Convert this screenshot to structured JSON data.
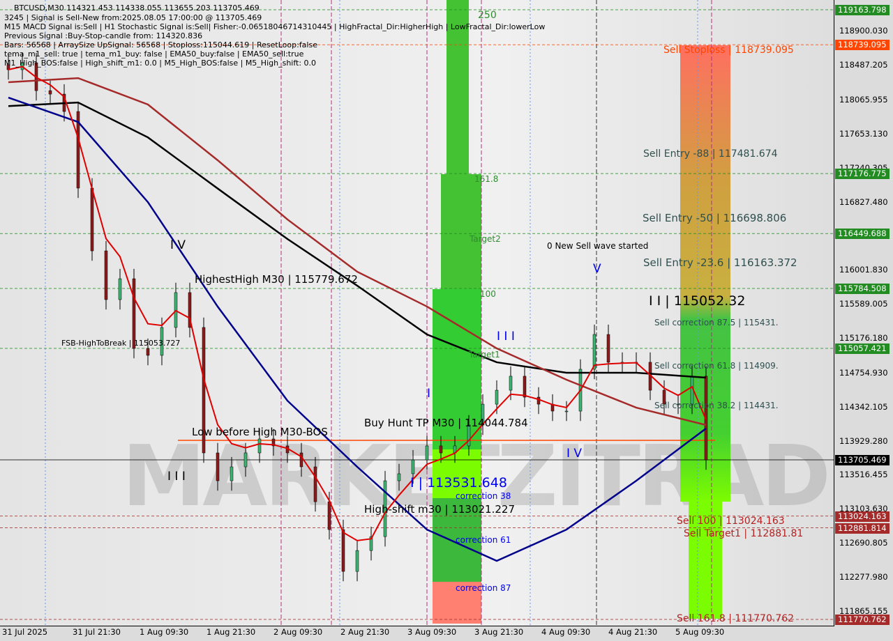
{
  "chart_data": {
    "type": "candlestick",
    "symbol_line": "BTCUSD,M30  114321.453 114338.055 113655.203 113705.469",
    "info_lines": [
      "3245 | Signal is Sell-New from:2025.08.05 17:00:00 @ 113705.469",
      "M15 MACD Signal is:Sell | H1 Stochastic Signal is:Sell| Fisher:-0.06518046714310445 | HighFractal_Dir:HigherHigh | LowFractal_Dir:lowerLow",
      "Previous Signal :Buy-Stop-candle from: 114320.836",
      "Bars: 56568 | ArraySize UpSignal: 56568 | Stoploss:115044.619 | ResetLoop:false",
      "tema_m1_sell: true | tema_m1_buy: false | EMA50_buy:false | EMA50_sell:true",
      "M1_High_BOS:false | High_shift_m1: 0.0 | M5_High_BOS:false | M5_High_shift: 0.0"
    ],
    "ylim": [
      111770.762,
      119163.798
    ],
    "y_ticks": [
      "118900.030",
      "118487.205",
      "118065.955",
      "117653.130",
      "117240.305",
      "116827.480",
      "116001.830",
      "115589.005",
      "115176.180",
      "114754.930",
      "114342.105",
      "113929.280",
      "113516.455",
      "113103.630",
      "112690.805",
      "112277.980",
      "111865.155"
    ],
    "x_ticks": [
      "31 Jul 2025",
      "31 Jul 21:30",
      "1 Aug 09:30",
      "1 Aug 21:30",
      "2 Aug 09:30",
      "2 Aug 21:30",
      "3 Aug 09:30",
      "3 Aug 21:30",
      "4 Aug 09:30",
      "4 Aug 21:30",
      "5 Aug 09:30"
    ],
    "times": [
      "31 Jul 06:30",
      "31 Jul 09:00",
      "31 Jul 11:30",
      "31 Jul 14:00",
      "31 Jul 16:30",
      "31 Jul 19:00",
      "31 Jul 21:30",
      "1 Aug 00:00",
      "1 Aug 02:30",
      "1 Aug 05:00",
      "1 Aug 07:30",
      "1 Aug 10:00",
      "1 Aug 12:30",
      "1 Aug 15:00",
      "1 Aug 17:30",
      "1 Aug 20:00",
      "1 Aug 22:30",
      "2 Aug 01:00",
      "2 Aug 03:30",
      "2 Aug 06:00",
      "2 Aug 08:30",
      "2 Aug 11:00",
      "2 Aug 13:30",
      "2 Aug 16:00",
      "2 Aug 18:30",
      "2 Aug 21:00",
      "2 Aug 23:30",
      "3 Aug 02:00",
      "3 Aug 04:30",
      "3 Aug 07:00",
      "3 Aug 09:30",
      "3 Aug 12:00",
      "3 Aug 14:30",
      "3 Aug 17:00",
      "3 Aug 19:30",
      "3 Aug 22:00",
      "4 Aug 00:30",
      "4 Aug 03:00",
      "4 Aug 05:30",
      "4 Aug 08:00",
      "4 Aug 10:30",
      "4 Aug 13:00",
      "4 Aug 15:30",
      "4 Aug 18:00",
      "4 Aug 20:30",
      "4 Aug 23:00",
      "5 Aug 01:30",
      "5 Aug 04:00",
      "5 Aug 06:30",
      "5 Aug 09:00",
      "5 Aug 11:30"
    ],
    "close": [
      118437,
      118521,
      118183,
      118141,
      117930,
      117001,
      116240,
      115649,
      115902,
      115057,
      114973,
      115311,
      115734,
      115311,
      113790,
      113452,
      113621,
      113790,
      113959,
      113875,
      113790,
      113621,
      113198,
      112860,
      112353,
      112606,
      112775,
      113452,
      113537,
      113705,
      113875,
      113790,
      113875,
      114128,
      114381,
      114550,
      114720,
      114466,
      114381,
      114297,
      114297,
      114804,
      115226,
      114889,
      114889,
      114889,
      114550,
      114381,
      114381,
      114720,
      113705
    ],
    "ma_times": [
      "31 Jul 06:30",
      "31 Jul 19:00",
      "1 Aug 07:30",
      "1 Aug 20:00",
      "2 Aug 08:30",
      "2 Aug 21:00",
      "3 Aug 09:30",
      "3 Aug 22:00",
      "4 Aug 10:30",
      "4 Aug 23:00",
      "5 Aug 11:30"
    ],
    "ma_series": [
      {
        "color": "#000000",
        "values": [
          117996,
          118039,
          117616,
          116996,
          116384,
          115818,
          115226,
          114889,
          114762,
          114762,
          114703
        ]
      },
      {
        "color": "#a52a2a",
        "values": [
          118285,
          118335,
          118015,
          117339,
          116621,
          115987,
          115565,
          115057,
          114677,
          114339,
          114128
        ]
      },
      {
        "color": "#00008b",
        "values": [
          118099,
          117803,
          116831,
          115564,
          114423,
          113621,
          112860,
          112480,
          112860,
          113452,
          114086
        ]
      }
    ],
    "price_levels": [
      {
        "price": "119163.798",
        "color": "#228b22"
      },
      {
        "price": "118739.095",
        "color": "#ff4500"
      },
      {
        "price": "117176.775",
        "color": "#228b22"
      },
      {
        "price": "116449.688",
        "color": "#228b22"
      },
      {
        "price": "115784.508",
        "color": "#228b22"
      },
      {
        "price": "115057.421",
        "color": "#228b22"
      },
      {
        "price": "113705.469",
        "color": "#000000"
      },
      {
        "price": "113024.163",
        "color": "#a52a2a"
      },
      {
        "price": "112881.814",
        "color": "#a52a2a"
      },
      {
        "price": "111770.762",
        "color": "#a52a2a"
      }
    ],
    "annotations": {
      "fib_250": "250",
      "fib_161": "161.8",
      "target2": "Target2",
      "fib_100": "100",
      "target1": "Target1",
      "corr38": "correction 38",
      "corr61": "correction 61",
      "corr87": "correction 87",
      "sell_stoploss": "Sell Stoploss | 118739.095",
      "sell_entry_88": "Sell Entry -88 | 117481.674",
      "sell_entry_50": "Sell Entry -50 | 116698.806",
      "sell_entry_23": "Sell Entry -23.6 | 116163.372",
      "new_sell_wave": "0 New Sell wave started",
      "wave_v": "V",
      "wave_ii": "I I | 115052.32",
      "sell_corr_875": "Sell correction 87.5 | 115431.",
      "sell_corr_618": "Sell correction 61.8 | 114909.",
      "sell_corr_382": "Sell correction 38.2 | 114431.",
      "wave_iii_blue": "I I I",
      "wave_i_blue": "I",
      "wave_iv_blue": "I V",
      "wave_iv_black": "I V",
      "highest_high": "HighestHigh   M30 | 115779.672",
      "fsb": "FSB-HighToBreak | 115053.727",
      "low_before_high": "Low before High   M30-BOS",
      "buy_hunt_tp": "Buy Hunt TP M30 | 114044.784",
      "wave_iii_black": "I I I",
      "high_shift": "High-shift m30 | 113021.227",
      "wave_i_price": "I | 113531.648",
      "sell_100": "Sell 100 | 113024.163",
      "sell_target1": "Sell Target1 | 112881.81",
      "sell_161": "Sell 161.8 | 111770.762"
    },
    "colors": {
      "bull": "#3cb371",
      "bear": "#8b1a1a",
      "zone_green": "#33cc33",
      "zone_lime": "#7cfc00",
      "zone_red": "#ff7f6f",
      "zone_yellow": "#c8b040"
    }
  },
  "watermark": "MARKETZITRADE"
}
